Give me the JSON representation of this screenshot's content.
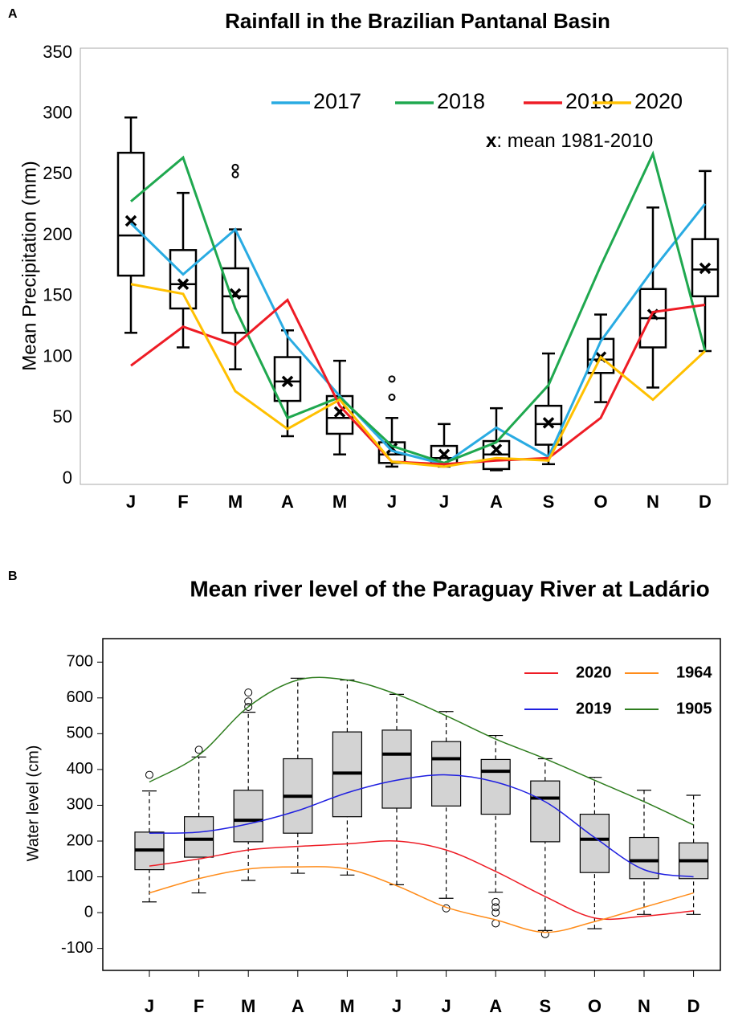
{
  "chart_data": [
    {
      "type": "box",
      "panel_label": "A",
      "title": "Rainfall in the Brazilian Pantanal Basin",
      "y_label": "Mean Precipitation (mm)",
      "categories": [
        "J",
        "F",
        "M",
        "A",
        "M",
        "J",
        "J",
        "A",
        "S",
        "O",
        "N",
        "D"
      ],
      "ylim": [
        0,
        350
      ],
      "yticks": [
        0,
        50,
        100,
        150,
        200,
        250,
        300,
        350
      ],
      "box_color": "#000000",
      "box_fill": "none",
      "whisker_style": "solid",
      "legend": "upper right",
      "mean_marker": "x",
      "mean_label": ": mean 1981-2010",
      "boxes": [
        {
          "min": 120,
          "q1": 167,
          "median": 200,
          "q3": 268,
          "max": 297,
          "mean": 212
        },
        {
          "min": 108,
          "q1": 140,
          "median": 160,
          "q3": 188,
          "max": 235,
          "mean": 160
        },
        {
          "min": 90,
          "q1": 120,
          "median": 150,
          "q3": 173,
          "max": 205,
          "mean": 152,
          "outliers": [
            250,
            256
          ]
        },
        {
          "min": 35,
          "q1": 64,
          "median": 80,
          "q3": 100,
          "max": 122,
          "mean": 80
        },
        {
          "min": 20,
          "q1": 37,
          "median": 50,
          "q3": 68,
          "max": 97,
          "mean": 55
        },
        {
          "min": 10,
          "q1": 13,
          "median": 20,
          "q3": 30,
          "max": 50,
          "mean": 25,
          "outliers": [
            67,
            82
          ]
        },
        {
          "min": 10,
          "q1": 12,
          "median": 17,
          "q3": 27,
          "max": 45,
          "mean": 20
        },
        {
          "min": 7,
          "q1": 8,
          "median": 20,
          "q3": 31,
          "max": 58,
          "mean": 24
        },
        {
          "min": 12,
          "q1": 28,
          "median": 45,
          "q3": 60,
          "max": 103,
          "mean": 46
        },
        {
          "min": 63,
          "q1": 87,
          "median": 98,
          "q3": 115,
          "max": 135,
          "mean": 100
        },
        {
          "min": 75,
          "q1": 108,
          "median": 132,
          "q3": 156,
          "max": 223,
          "mean": 135
        },
        {
          "min": 105,
          "q1": 150,
          "median": 172,
          "q3": 197,
          "max": 253,
          "mean": 173
        }
      ],
      "series": [
        {
          "name": "2017",
          "color": "#29abe2",
          "values": [
            210,
            168,
            205,
            117,
            68,
            23,
            12,
            42,
            18,
            113,
            172,
            226
          ]
        },
        {
          "name": "2018",
          "color": "#1fa84f",
          "values": [
            228,
            264,
            140,
            50,
            67,
            27,
            13,
            30,
            77,
            175,
            267,
            105
          ]
        },
        {
          "name": "2019",
          "color": "#ee1c25",
          "values": [
            93,
            125,
            110,
            147,
            60,
            14,
            12,
            15,
            17,
            50,
            137,
            143
          ]
        },
        {
          "name": "2020",
          "color": "#ffc000",
          "values": [
            160,
            152,
            72,
            41,
            65,
            14,
            10,
            17,
            15,
            100,
            65,
            105
          ]
        }
      ]
    },
    {
      "type": "box",
      "panel_label": "B",
      "title": "Mean river level of the Paraguay River at Ladário",
      "y_label": "Water level (cm)",
      "categories": [
        "J",
        "F",
        "M",
        "A",
        "M",
        "J",
        "J",
        "A",
        "S",
        "O",
        "N",
        "D"
      ],
      "ylim": [
        -130,
        732
      ],
      "yticks": [
        -100,
        0,
        100,
        200,
        300,
        400,
        500,
        600,
        700
      ],
      "box_color": "#000000",
      "box_fill": "#d3d3d3",
      "whisker_style": "dashed",
      "legend": "upper right",
      "boxes": [
        {
          "min": 30,
          "q1": 120,
          "median": 175,
          "q3": 225,
          "max": 340,
          "outliers": [
            385
          ]
        },
        {
          "min": 55,
          "q1": 155,
          "median": 205,
          "q3": 268,
          "max": 435,
          "outliers": [
            455
          ]
        },
        {
          "min": 90,
          "q1": 198,
          "median": 258,
          "q3": 342,
          "max": 560,
          "outliers": [
            575,
            590,
            615
          ]
        },
        {
          "min": 110,
          "q1": 222,
          "median": 325,
          "q3": 430,
          "max": 655
        },
        {
          "min": 105,
          "q1": 268,
          "median": 390,
          "q3": 505,
          "max": 650
        },
        {
          "min": 78,
          "q1": 292,
          "median": 443,
          "q3": 510,
          "max": 610
        },
        {
          "min": 40,
          "q1": 298,
          "median": 430,
          "q3": 478,
          "max": 562,
          "outliers": [
            12
          ]
        },
        {
          "min": 57,
          "q1": 275,
          "median": 395,
          "q3": 428,
          "max": 495,
          "outliers": [
            30,
            15,
            0,
            -30
          ]
        },
        {
          "min": -50,
          "q1": 198,
          "median": 320,
          "q3": 368,
          "max": 430,
          "outliers": [
            -60
          ]
        },
        {
          "min": -45,
          "q1": 112,
          "median": 205,
          "q3": 275,
          "max": 378
        },
        {
          "min": -5,
          "q1": 95,
          "median": 145,
          "q3": 210,
          "max": 342
        },
        {
          "min": -5,
          "q1": 95,
          "median": 145,
          "q3": 195,
          "max": 328
        }
      ],
      "series": [
        {
          "name": "2020",
          "color": "#ee1c25",
          "values": [
            130,
            150,
            175,
            185,
            192,
            200,
            175,
            115,
            45,
            -15,
            -10,
            5
          ]
        },
        {
          "name": "2019",
          "color": "#1f1fe0",
          "values": [
            222,
            225,
            248,
            285,
            335,
            370,
            385,
            365,
            310,
            210,
            120,
            100
          ]
        },
        {
          "name": "1964",
          "color": "#ff8c1a",
          "values": [
            55,
            95,
            122,
            128,
            122,
            75,
            15,
            -20,
            -55,
            -25,
            15,
            55
          ]
        },
        {
          "name": "1905",
          "color": "#2e7d1e",
          "values": [
            365,
            440,
            575,
            650,
            650,
            610,
            550,
            485,
            430,
            370,
            310,
            245
          ]
        }
      ]
    }
  ]
}
